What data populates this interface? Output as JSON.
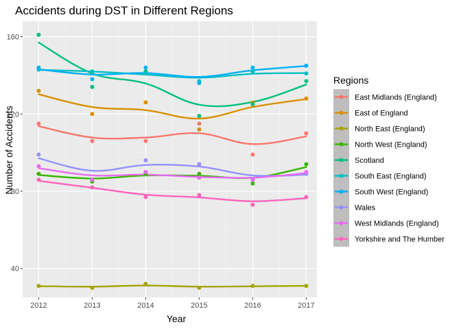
{
  "chart_data": {
    "type": "scatter",
    "title": "Accidents during DST in Different Regions",
    "xlabel": "Year",
    "ylabel": "Number of Accidents",
    "x": [
      2012,
      2013,
      2014,
      2015,
      2016,
      2017
    ],
    "x_ticks": [
      "2012",
      "2013",
      "2014",
      "2015",
      "2016",
      "2017"
    ],
    "y_ticks": [
      "40",
      "80",
      "120",
      "160"
    ],
    "y_tick_values": [
      40,
      80,
      120,
      160
    ],
    "xlim": [
      2011.7,
      2017.2
    ],
    "ylim": [
      25,
      168
    ],
    "grid": true,
    "smoothed_lines": true,
    "legend": {
      "title": "Regions",
      "position": "right"
    },
    "series": [
      {
        "name": "East Midlands (England)",
        "color": "#F8766D",
        "values": [
          115,
          106,
          106,
          115,
          99,
          110
        ]
      },
      {
        "name": "East of England",
        "color": "#D89000",
        "values": [
          132,
          120,
          126,
          112,
          126,
          128
        ]
      },
      {
        "name": "North East (England)",
        "color": "#A3A500",
        "values": [
          31,
          30,
          32,
          30,
          31,
          31
        ]
      },
      {
        "name": "North West (England)",
        "color": "#39B600",
        "values": [
          89,
          85,
          89,
          89,
          84,
          94
        ]
      },
      {
        "name": "Scotland",
        "color": "#00BF7D",
        "values": [
          161,
          134,
          142,
          119,
          125,
          137
        ]
      },
      {
        "name": "South East (England)",
        "color": "#00BFC4",
        "values": [
          143,
          142,
          141,
          137,
          142,
          141
        ]
      },
      {
        "name": "South West (England)",
        "color": "#00B0F6",
        "values": [
          144,
          138,
          144,
          136,
          144,
          145
        ]
      },
      {
        "name": "Wales",
        "color": "#9590FF",
        "values": [
          99,
          86,
          96,
          94,
          86,
          89
        ]
      },
      {
        "name": "West Midlands (England)",
        "color": "#E76BF3",
        "values": [
          93,
          86,
          90,
          87,
          86,
          90
        ]
      },
      {
        "name": "Yorkshire and The Humber",
        "color": "#FF62BC",
        "values": [
          86,
          82,
          77,
          78,
          73,
          77
        ]
      }
    ]
  }
}
